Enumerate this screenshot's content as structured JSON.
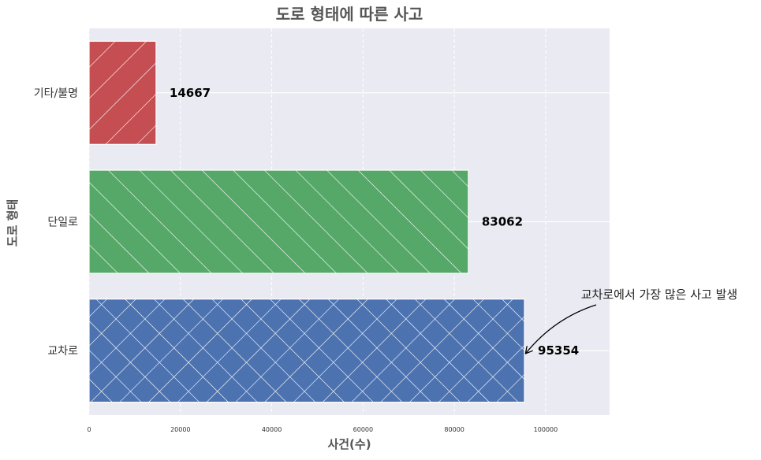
{
  "chart_data": {
    "type": "bar",
    "orientation": "horizontal",
    "title": "도로 형태에 따른 사고",
    "xlabel": "사건(수)",
    "ylabel": "도로 형태",
    "categories": [
      "교차로",
      "단일로",
      "기타/불명"
    ],
    "values": [
      95354,
      83062,
      14667
    ],
    "value_labels": [
      "95354",
      "83062",
      "14667"
    ],
    "colors": [
      "#4c72b0",
      "#55a868",
      "#c44e52"
    ],
    "hatches": [
      "crosshatch-diagonal",
      "backslash",
      "slash"
    ],
    "xlim": [
      0,
      114000
    ],
    "xticks": [
      0,
      20000,
      40000,
      60000,
      80000,
      100000
    ],
    "xtick_labels": [
      "0",
      "20000",
      "40000",
      "60000",
      "80000",
      "100000"
    ],
    "grid": true,
    "background": "#eaeaf2",
    "annotation": {
      "text": "교차로에서 가장 많은 사고 발생",
      "target_category": "교차로",
      "target_value": 95354
    }
  }
}
